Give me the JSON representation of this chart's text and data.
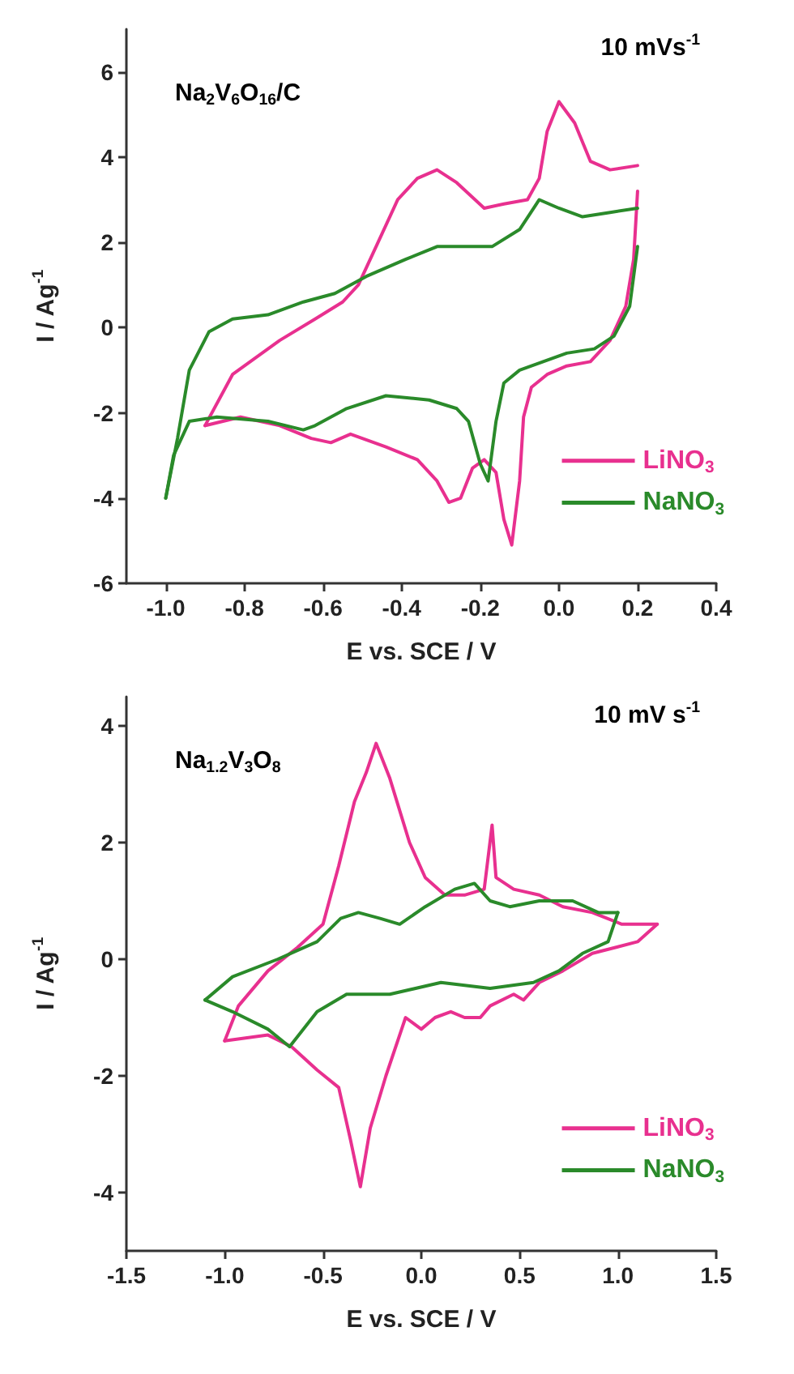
{
  "chart_data": [
    {
      "type": "line",
      "xlabel": "E vs. SCE / V",
      "ylabel": "I / Ag$^{-1}$",
      "annotations": [
        "Na$_{2}$V$_{6}$O$_{16}$/C",
        "10 mVs$^{-1}$"
      ],
      "legend": "bottom right",
      "xlim": [
        -1.1,
        0.4
      ],
      "ylim": [
        -6,
        7
      ],
      "xticks": [
        {
          "value": -1,
          "label": "-1.0"
        },
        -0.8,
        -0.6,
        -0.4,
        -0.2,
        {
          "value": 0,
          "label": "0.0"
        },
        0.2,
        0.4
      ],
      "yticks": [
        -6,
        -4,
        -2,
        0,
        2,
        4,
        6
      ],
      "series": [
        {
          "name": "LiNO$_{3}$",
          "color": "#e8308f",
          "x": [
            -0.9,
            -0.83,
            -0.71,
            -0.62,
            -0.55,
            -0.51,
            -0.46,
            -0.41,
            -0.36,
            -0.31,
            -0.26,
            -0.19,
            -0.14,
            -0.08,
            -0.05,
            -0.03,
            0.0,
            0.04,
            0.08,
            0.13,
            0.2
          ],
          "values": [
            -2.3,
            -1.1,
            -0.3,
            0.2,
            0.6,
            1.0,
            2.0,
            3.0,
            3.5,
            3.7,
            3.4,
            2.8,
            2.9,
            3.0,
            3.5,
            4.6,
            5.3,
            4.8,
            3.9,
            3.7,
            3.8
          ]
        },
        {
          "color": "#e8308f",
          "x": [
            0.2,
            0.19,
            0.17,
            0.13,
            0.08,
            0.02,
            -0.03,
            -0.07,
            -0.09,
            -0.1,
            -0.12,
            -0.14,
            -0.16,
            -0.19,
            -0.22,
            -0.25,
            -0.28,
            -0.31,
            -0.36,
            -0.44,
            -0.53,
            -0.58,
            -0.63,
            -0.71,
            -0.81,
            -0.9
          ],
          "values": [
            3.2,
            1.6,
            0.5,
            -0.3,
            -0.8,
            -0.9,
            -1.1,
            -1.4,
            -2.1,
            -3.6,
            -5.1,
            -4.5,
            -3.4,
            -3.1,
            -3.3,
            -4.0,
            -4.1,
            -3.6,
            -3.1,
            -2.8,
            -2.5,
            -2.7,
            -2.6,
            -2.3,
            -2.1,
            -2.3
          ]
        },
        {
          "name": "NaNO$_{3}$",
          "color": "#2a8a2a",
          "x": [
            -1.0,
            -0.97,
            -0.94,
            -0.89,
            -0.83,
            -0.74,
            -0.65,
            -0.57,
            -0.49,
            -0.39,
            -0.31,
            -0.23,
            -0.17,
            -0.1,
            -0.05,
            0.0,
            0.06,
            0.13,
            0.2
          ],
          "values": [
            -4.0,
            -2.6,
            -1.0,
            -0.1,
            0.2,
            0.3,
            0.6,
            0.8,
            1.2,
            1.6,
            1.9,
            1.9,
            1.9,
            2.3,
            3.0,
            2.8,
            2.6,
            2.7,
            2.8
          ]
        },
        {
          "color": "#2a8a2a",
          "x": [
            0.2,
            0.18,
            0.14,
            0.09,
            0.02,
            -0.04,
            -0.1,
            -0.14,
            -0.16,
            -0.18,
            -0.2,
            -0.23,
            -0.26,
            -0.33,
            -0.44,
            -0.54,
            -0.62,
            -0.65,
            -0.74,
            -0.87,
            -0.94,
            -0.98,
            -1.0
          ],
          "values": [
            1.9,
            0.5,
            -0.2,
            -0.5,
            -0.6,
            -0.8,
            -1.0,
            -1.3,
            -2.2,
            -3.6,
            -3.2,
            -2.2,
            -1.9,
            -1.7,
            -1.6,
            -1.9,
            -2.3,
            -2.4,
            -2.2,
            -2.1,
            -2.2,
            -3.0,
            -4.0
          ]
        }
      ]
    },
    {
      "type": "line",
      "xlabel": "E vs. SCE / V",
      "ylabel": "I / Ag$^{-1}$",
      "annotations": [
        "Na$_{1.2}$V$_{3}$O$_{8}$",
        "10 mV s$^{-1}$"
      ],
      "legend": "bottom right",
      "xlim": [
        -1.5,
        1.5
      ],
      "ylim": [
        -5,
        4.5
      ],
      "xticks": [
        -1.5,
        {
          "value": -1,
          "label": "-1.0"
        },
        -0.5,
        {
          "value": 0,
          "label": "0.0"
        },
        0.5,
        {
          "value": 1,
          "label": "1.0"
        },
        1.5
      ],
      "yticks": [
        -4,
        -2,
        0,
        2,
        4
      ],
      "series": [
        {
          "name": "LiNO$_{3}$",
          "color": "#e8308f",
          "x": [
            -1.0,
            -0.93,
            -0.78,
            -0.63,
            -0.5,
            -0.42,
            -0.34,
            -0.28,
            -0.23,
            -0.16,
            -0.06,
            0.02,
            0.12,
            0.22,
            0.32,
            0.36,
            0.38,
            0.47,
            0.6,
            0.72,
            0.87,
            1.02,
            1.2
          ],
          "values": [
            -1.4,
            -0.8,
            -0.2,
            0.2,
            0.6,
            1.6,
            2.7,
            3.2,
            3.7,
            3.1,
            2.0,
            1.4,
            1.1,
            1.1,
            1.2,
            2.3,
            1.4,
            1.2,
            1.1,
            0.9,
            0.8,
            0.6,
            0.6
          ]
        },
        {
          "color": "#e8308f",
          "x": [
            1.2,
            1.1,
            0.87,
            0.72,
            0.6,
            0.52,
            0.47,
            0.35,
            0.3,
            0.22,
            0.15,
            0.07,
            0.0,
            -0.08,
            -0.18,
            -0.26,
            -0.31,
            -0.36,
            -0.42,
            -0.53,
            -0.66,
            -0.78,
            -1.0
          ],
          "values": [
            0.6,
            0.3,
            0.1,
            -0.2,
            -0.4,
            -0.7,
            -0.6,
            -0.8,
            -1.0,
            -1.0,
            -0.9,
            -1.0,
            -1.2,
            -1.0,
            -2.0,
            -2.9,
            -3.9,
            -3.1,
            -2.2,
            -1.9,
            -1.5,
            -1.3,
            -1.4
          ]
        },
        {
          "name": "NaNO$_{3}$",
          "color": "#2a8a2a",
          "x": [
            -1.1,
            -0.96,
            -0.73,
            -0.53,
            -0.41,
            -0.32,
            -0.21,
            -0.11,
            0.02,
            0.17,
            0.27,
            0.35,
            0.45,
            0.6,
            0.77,
            0.9,
            1.0
          ],
          "values": [
            -0.7,
            -0.3,
            0.0,
            0.3,
            0.7,
            0.8,
            0.7,
            0.6,
            0.9,
            1.2,
            1.3,
            1.0,
            0.9,
            1.0,
            1.0,
            0.8,
            0.8
          ]
        },
        {
          "color": "#2a8a2a",
          "x": [
            1.0,
            0.95,
            0.82,
            0.7,
            0.57,
            0.35,
            0.1,
            -0.16,
            -0.38,
            -0.53,
            -0.67,
            -0.78,
            -0.96,
            -1.1
          ],
          "values": [
            0.8,
            0.3,
            0.1,
            -0.2,
            -0.4,
            -0.5,
            -0.4,
            -0.6,
            -0.6,
            -0.9,
            -1.5,
            -1.2,
            -0.9,
            -0.7
          ]
        }
      ]
    }
  ]
}
